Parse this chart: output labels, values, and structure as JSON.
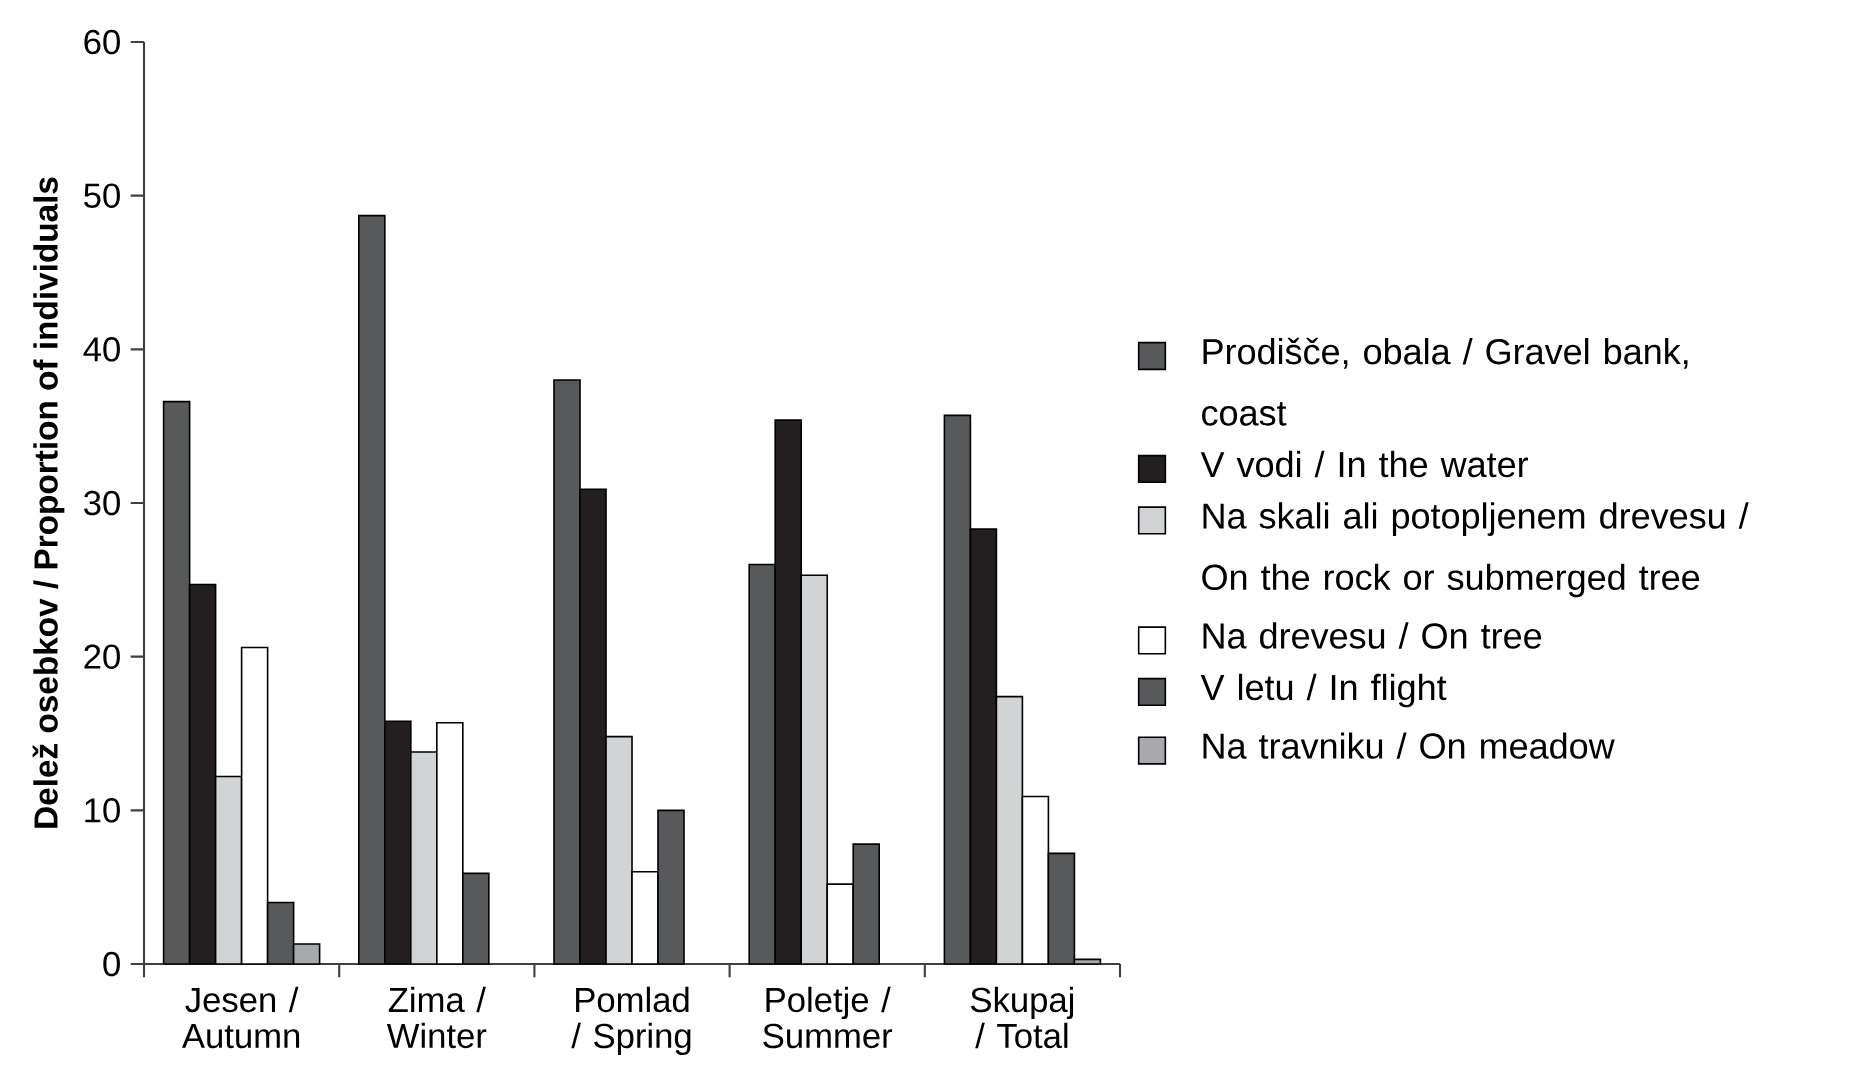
{
  "chart_data": {
    "type": "bar",
    "ylabel": "Delež osebkov / Proportion of individuals",
    "categories": [
      "Jesen / Autumn",
      "Zima / Winter",
      "Pomlad / Spring",
      "Poletje / Summer",
      "Skupaj / Total"
    ],
    "series": [
      {
        "name": "Prodišče, obala / Gravel bank, coast",
        "color": "#58595b",
        "values": [
          36.6,
          48.7,
          38.0,
          26.0,
          35.7
        ]
      },
      {
        "name": "V vodi / In the water",
        "color": "#231f20",
        "values": [
          24.7,
          15.8,
          30.9,
          35.4,
          28.3
        ]
      },
      {
        "name": "Na skali ali potopljenem drevesu / On the rock or submerged tree",
        "color": "#d1d3d4",
        "values": [
          12.2,
          13.8,
          14.8,
          25.3,
          17.4
        ]
      },
      {
        "name": "Na drevesu / On tree",
        "color": "#ffffff",
        "values": [
          20.6,
          15.7,
          6.0,
          5.2,
          10.9
        ]
      },
      {
        "name": "V letu / In flight",
        "color": "#58595b",
        "values": [
          4.0,
          5.9,
          10.0,
          7.8,
          7.2
        ]
      },
      {
        "name": "Na travniku / On meadow",
        "color": "#a7a9ac",
        "values": [
          1.3,
          null,
          null,
          null,
          0.3
        ]
      }
    ],
    "ylim": [
      0,
      60
    ],
    "yticks": [
      0,
      10,
      20,
      30,
      40,
      50,
      60
    ],
    "grid": false,
    "legend": "right"
  }
}
